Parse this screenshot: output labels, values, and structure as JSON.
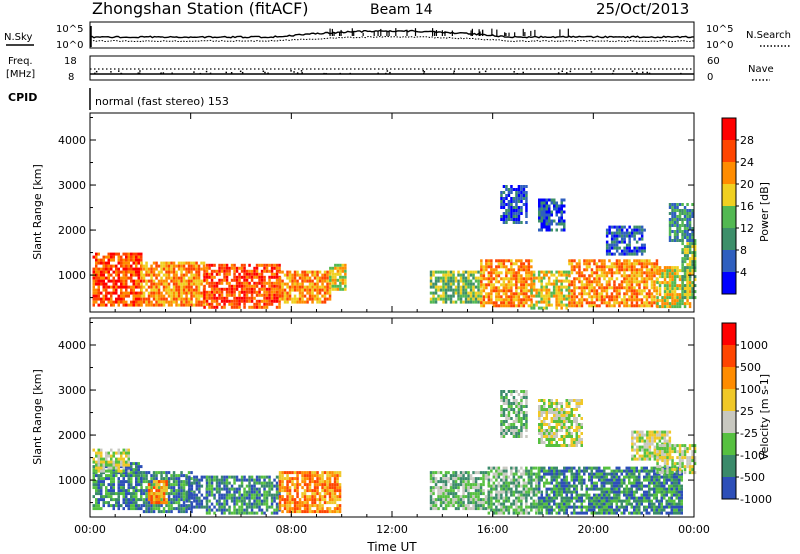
{
  "header": {
    "title": "Zhongshan Station (fitACF)",
    "beam": "Beam 14",
    "date": "25/Oct/2013"
  },
  "noise_panel": {
    "left_label": "N.Sky",
    "right_label": "N.Search",
    "left_ticks": [
      "10^5",
      "10^0"
    ],
    "right_ticks": [
      "10^5",
      "10^0"
    ]
  },
  "freq_panel": {
    "left_label_1": "Freq.",
    "left_label_2": "[MHz]",
    "left_ticks": [
      "18",
      "8"
    ],
    "right_label": "Nave",
    "right_ticks": [
      "60",
      "0"
    ]
  },
  "cpid": {
    "label": "CPID",
    "mode": "normal (fast stereo) 153"
  },
  "colors": {
    "power": [
      "#0000ff",
      "#2f5fbf",
      "#3d8f6a",
      "#52b852",
      "#f0d020",
      "#ff8c00",
      "#ff4500",
      "#ff0000"
    ],
    "velocity": [
      "#2d4fb8",
      "#3a8a6a",
      "#56c040",
      "#c8c8c0",
      "#f0c828",
      "#ff8c00",
      "#ff4500",
      "#ff0000"
    ]
  },
  "chart_data": [
    {
      "type": "heatmap",
      "name": "power",
      "xlabel": "",
      "ylabel": "Slant Range [km]",
      "colorbar_label": "Power [dB]",
      "colorbar_ticks": [
        "4",
        "8",
        "12",
        "16",
        "20",
        "24",
        "28"
      ],
      "x_ticks": [
        "00:00",
        "04:00",
        "08:00",
        "12:00",
        "16:00",
        "20:00",
        "00:00"
      ],
      "y_ticks": [
        "1000",
        "2000",
        "3000",
        "4000"
      ],
      "xlim": [
        0,
        24
      ],
      "ylim": [
        180,
        4600
      ],
      "regions": [
        {
          "x0": 0.1,
          "x1": 2.0,
          "y0": 350,
          "y1": 1500,
          "level": 6
        },
        {
          "x0": 2.0,
          "x1": 4.5,
          "y0": 350,
          "y1": 1300,
          "level": 5
        },
        {
          "x0": 4.5,
          "x1": 7.5,
          "y0": 300,
          "y1": 1250,
          "level": 6
        },
        {
          "x0": 7.5,
          "x1": 9.5,
          "y0": 400,
          "y1": 1100,
          "level": 5
        },
        {
          "x0": 9.5,
          "x1": 10.1,
          "y0": 700,
          "y1": 1250,
          "level": 4
        },
        {
          "x0": 13.5,
          "x1": 15.5,
          "y0": 400,
          "y1": 1100,
          "level": 3
        },
        {
          "x0": 15.5,
          "x1": 17.5,
          "y0": 350,
          "y1": 1350,
          "level": 5
        },
        {
          "x0": 17.5,
          "x1": 19.0,
          "y0": 300,
          "y1": 1100,
          "level": 4
        },
        {
          "x0": 19.0,
          "x1": 22.5,
          "y0": 300,
          "y1": 1350,
          "level": 5
        },
        {
          "x0": 22.5,
          "x1": 23.8,
          "y0": 300,
          "y1": 1200,
          "level": 4
        },
        {
          "x0": 23.5,
          "x1": 24.0,
          "y0": 500,
          "y1": 1800,
          "level": 3
        },
        {
          "x0": 16.3,
          "x1": 17.3,
          "y0": 2200,
          "y1": 3000,
          "level": 1
        },
        {
          "x0": 17.8,
          "x1": 18.8,
          "y0": 2000,
          "y1": 2700,
          "level": 1
        },
        {
          "x0": 20.5,
          "x1": 22.0,
          "y0": 1500,
          "y1": 2100,
          "level": 1
        },
        {
          "x0": 23.0,
          "x1": 23.9,
          "y0": 1800,
          "y1": 2600,
          "level": 2
        }
      ]
    },
    {
      "type": "heatmap",
      "name": "velocity",
      "xlabel": "Time UT",
      "ylabel": "Slant Range [km]",
      "colorbar_label": "Velocity [m s-1]",
      "colorbar_ticks": [
        "1000",
        "500",
        "100",
        "25",
        "-25",
        "-100",
        "-500",
        "-1000"
      ],
      "x_ticks": [
        "00:00",
        "04:00",
        "08:00",
        "12:00",
        "16:00",
        "20:00",
        "00:00"
      ],
      "y_ticks": [
        "1000",
        "2000",
        "3000",
        "4000"
      ],
      "xlim": [
        0,
        24
      ],
      "ylim": [
        180,
        4600
      ],
      "regions": [
        {
          "x0": 0.1,
          "x1": 2.0,
          "y0": 350,
          "y1": 1400,
          "level": 1
        },
        {
          "x0": 0.1,
          "x1": 1.5,
          "y0": 1200,
          "y1": 1700,
          "level": 3
        },
        {
          "x0": 2.0,
          "x1": 4.0,
          "y0": 300,
          "y1": 1200,
          "level": 1
        },
        {
          "x0": 2.3,
          "x1": 3.0,
          "y0": 500,
          "y1": 1000,
          "level": 5
        },
        {
          "x0": 3.8,
          "x1": 4.6,
          "y0": 400,
          "y1": 1100,
          "level": 0
        },
        {
          "x0": 4.6,
          "x1": 7.5,
          "y0": 300,
          "y1": 1100,
          "level": 1
        },
        {
          "x0": 7.5,
          "x1": 9.9,
          "y0": 300,
          "y1": 1200,
          "level": 5
        },
        {
          "x0": 13.5,
          "x1": 15.8,
          "y0": 400,
          "y1": 1200,
          "level": 2
        },
        {
          "x0": 15.8,
          "x1": 17.8,
          "y0": 300,
          "y1": 1300,
          "level": 2
        },
        {
          "x0": 17.8,
          "x1": 23.5,
          "y0": 300,
          "y1": 1300,
          "level": 1
        },
        {
          "x0": 16.3,
          "x1": 17.3,
          "y0": 2000,
          "y1": 3000,
          "level": 2
        },
        {
          "x0": 17.8,
          "x1": 19.5,
          "y0": 1800,
          "y1": 2800,
          "level": 3
        },
        {
          "x0": 21.5,
          "x1": 23.0,
          "y0": 1500,
          "y1": 2100,
          "level": 3
        },
        {
          "x0": 22.5,
          "x1": 24.0,
          "y0": 1200,
          "y1": 1800,
          "level": 3
        }
      ]
    }
  ]
}
